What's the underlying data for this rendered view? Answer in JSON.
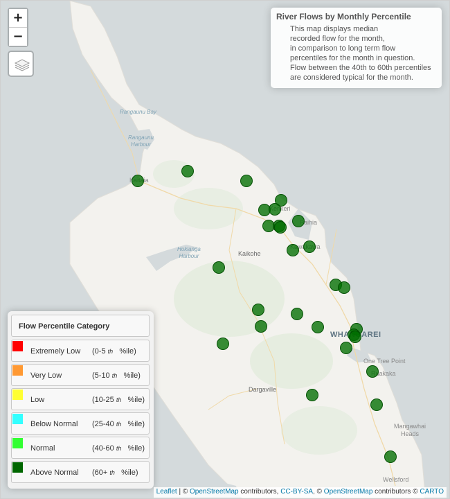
{
  "controls": {
    "zoom_in": "+",
    "zoom_out": "−",
    "layers_icon": "layers-icon"
  },
  "info": {
    "title": "River Flows by Monthly Percentile",
    "lines": [
      "This map displays median",
      "recorded flow for the month,",
      "in comparison to long term flow",
      "percentiles for the month in question.",
      "Flow between the 40th to 60th percentiles",
      "are considered typical for the month."
    ]
  },
  "legend": {
    "title": "Flow Percentile Category",
    "items": [
      {
        "name": "Extremely Low",
        "range_open": "(0-5",
        "range_th": "th",
        "range_close": "%ile)",
        "color": "#ff0000"
      },
      {
        "name": "Very Low",
        "range_open": "(5-10",
        "range_th": "th",
        "range_close": "%ile)",
        "color": "#ff9933"
      },
      {
        "name": "Low",
        "range_open": "(10-25",
        "range_th": "th",
        "range_close": "%ile)",
        "color": "#ffff33"
      },
      {
        "name": "Below Normal",
        "range_open": "(25-40",
        "range_th": "th",
        "range_close": "%ile)",
        "color": "#33ffff"
      },
      {
        "name": "Normal",
        "range_open": "(40-60",
        "range_th": "th",
        "range_close": "%ile)",
        "color": "#33ff33"
      },
      {
        "name": "Above Normal",
        "range_open": "(60+",
        "range_th": "th",
        "range_close": "%ile)",
        "color": "#006600"
      }
    ]
  },
  "places": {
    "rangaunu_bay": "Rangaunu Bay",
    "rangaunu_harbour_1": "Rangaunu",
    "rangaunu_harbour_2": "Harbour",
    "kaitaia": "Kaitaia",
    "kerikeri": "Kerikeri",
    "paihia": "Paihia",
    "kawakawa": "Kawakawa",
    "hokianga_1": "Hokianga",
    "hokianga_2": "Harbour",
    "kaikohe": "Kaikohe",
    "whangarei": "WHANGAREI",
    "one_tree_point": "One Tree Point",
    "ruakaka": "Ruakaka",
    "dargaville": "Dargaville",
    "mangawhai_1": "Mangawhai",
    "mangawhai_2": "Heads",
    "wellsford": "Wellsford"
  },
  "stations": {
    "category": "Above Normal",
    "count": 27
  },
  "attribution": {
    "leaflet": "Leaflet",
    "sep1": " | © ",
    "osm1": "OpenStreetMap",
    "contrib1": " contributors, ",
    "ccbysa": "CC-BY-SA",
    "sep2": ", © ",
    "osm2": "OpenStreetMap",
    "contrib2": " contributors © ",
    "carto": "CARTO"
  }
}
